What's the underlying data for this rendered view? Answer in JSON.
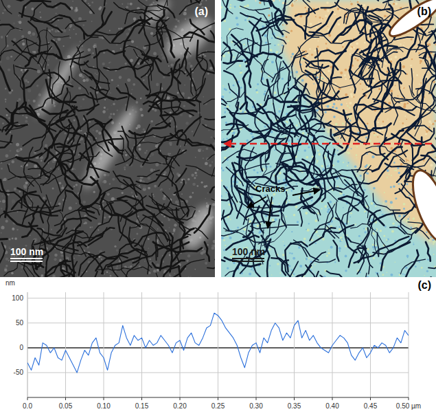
{
  "panels": [
    {
      "label": "(a)",
      "scale_bar": "100 nm"
    },
    {
      "label": "(b)",
      "scale_bar": "100 nm",
      "annotation": "Cracks"
    }
  ],
  "chart_data": {
    "type": "line",
    "label": "(c)",
    "y_label": "nm",
    "color": "#2a6fdb",
    "grid": true,
    "xlim": [
      0,
      0.5
    ],
    "ylim": [
      -100,
      112
    ],
    "xticks": [
      {
        "value": 0,
        "label": "0.0"
      },
      0.05,
      {
        "value": 0.1,
        "label": "0.10"
      },
      0.15,
      {
        "value": 0.2,
        "label": "0.20"
      },
      0.25,
      {
        "value": 0.3,
        "label": "0.30"
      },
      0.35,
      {
        "value": 0.4,
        "label": "0.40"
      },
      0.45,
      {
        "value": 0.5,
        "label": "0.50 µm"
      }
    ],
    "yticks": [
      100,
      50,
      0,
      -50
    ],
    "x": [
      0,
      0.005,
      0.01,
      0.015,
      0.02,
      0.025,
      0.03,
      0.035,
      0.04,
      0.045,
      0.05,
      0.055,
      0.06,
      0.065,
      0.07,
      0.075,
      0.08,
      0.085,
      0.09,
      0.095,
      0.1,
      0.105,
      0.11,
      0.115,
      0.12,
      0.125,
      0.13,
      0.135,
      0.14,
      0.145,
      0.15,
      0.155,
      0.16,
      0.165,
      0.17,
      0.175,
      0.18,
      0.185,
      0.19,
      0.195,
      0.2,
      0.205,
      0.21,
      0.215,
      0.22,
      0.225,
      0.23,
      0.235,
      0.24,
      0.245,
      0.25,
      0.255,
      0.26,
      0.265,
      0.27,
      0.275,
      0.28,
      0.285,
      0.29,
      0.295,
      0.3,
      0.305,
      0.31,
      0.315,
      0.32,
      0.325,
      0.33,
      0.335,
      0.34,
      0.345,
      0.35,
      0.355,
      0.36,
      0.365,
      0.37,
      0.375,
      0.38,
      0.385,
      0.39,
      0.395,
      0.4,
      0.405,
      0.41,
      0.415,
      0.42,
      0.425,
      0.43,
      0.435,
      0.44,
      0.445,
      0.45,
      0.455,
      0.46,
      0.465,
      0.47,
      0.475,
      0.48,
      0.485,
      0.49,
      0.495,
      0.5
    ],
    "values": [
      -30,
      -45,
      -20,
      -35,
      10,
      5,
      -10,
      0,
      -20,
      -25,
      -5,
      -20,
      -35,
      -50,
      -25,
      -5,
      -15,
      10,
      20,
      -10,
      -20,
      -45,
      -10,
      5,
      10,
      45,
      20,
      5,
      25,
      15,
      20,
      0,
      15,
      5,
      10,
      25,
      15,
      5,
      -10,
      10,
      15,
      -5,
      20,
      30,
      10,
      5,
      20,
      40,
      45,
      70,
      65,
      55,
      40,
      30,
      20,
      5,
      -20,
      -40,
      -10,
      5,
      10,
      -10,
      20,
      10,
      35,
      50,
      40,
      15,
      30,
      20,
      45,
      55,
      20,
      35,
      15,
      25,
      10,
      0,
      -5,
      -10,
      5,
      15,
      25,
      20,
      10,
      -15,
      -25,
      -10,
      0,
      -20,
      -10,
      5,
      0,
      10,
      5,
      -10,
      0,
      20,
      10,
      35,
      25
    ]
  }
}
